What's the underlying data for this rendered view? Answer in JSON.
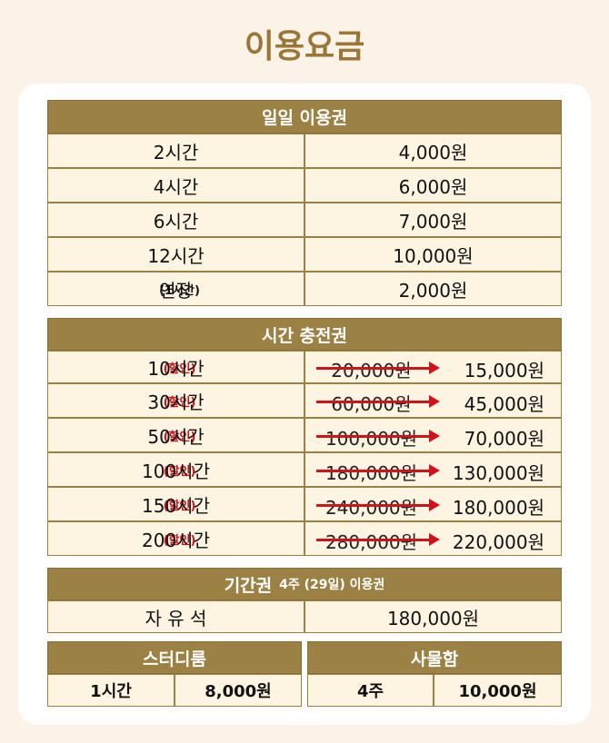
{
  "title": "이용요금",
  "daily": {
    "header": "일일 이용권",
    "rows": [
      {
        "label": "2시간",
        "price": "4,000원"
      },
      {
        "label": "4시간",
        "price": "6,000원"
      },
      {
        "label": "6시간",
        "price": "7,000원"
      },
      {
        "label": "12시간",
        "price": "10,000원"
      },
      {
        "label": "연장",
        "note": "(1시간)",
        "price": "2,000원"
      }
    ]
  },
  "charge": {
    "header": "시간 충전권",
    "rows": [
      {
        "label": "10시간",
        "note": "(할인)",
        "old_price": "20,000원",
        "price": "15,000원"
      },
      {
        "label": "30시간",
        "note": "(할인)",
        "old_price": "60,000원",
        "price": "45,000원"
      },
      {
        "label": "50시간",
        "note": "(할인)",
        "old_price": "100,000원",
        "price": "70,000원"
      },
      {
        "label": "100시간",
        "note": "(할인)",
        "old_price": "180,000원",
        "price": "130,000원"
      },
      {
        "label": "150시간",
        "note": "(할인)",
        "old_price": "240,000원",
        "price": "180,000원"
      },
      {
        "label": "200시간",
        "note": "(할인)",
        "old_price": "280,000원",
        "price": "220,000원"
      }
    ]
  },
  "period": {
    "header_main": "기간권",
    "header_sub": "4주 (29일) 이용권",
    "rows": [
      {
        "label": "자 유 석",
        "price": "180,000원"
      }
    ]
  },
  "study_room": {
    "header": "스터디룸",
    "label": "1시간",
    "price": "8,000원"
  },
  "locker": {
    "header": "사물함",
    "label": "4주",
    "price": "10,000원"
  }
}
